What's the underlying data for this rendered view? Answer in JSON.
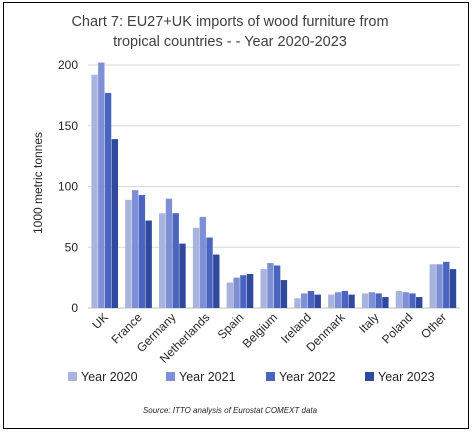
{
  "chart_data": {
    "type": "bar",
    "title_line1": "Chart 7: EU27+UK imports of wood furniture from",
    "title_line2": "tropical countries - - Year 2020-2023",
    "xlabel": "",
    "ylabel": "1000 metric tonnes",
    "ylim": [
      0,
      200
    ],
    "yticks": [
      "0",
      "50",
      "100",
      "150",
      "200"
    ],
    "grid": true,
    "legend_position": "bottom",
    "source": "Source: ITTO analysis of Eurostat COMEXT data",
    "categories": [
      "UK",
      "France",
      "Germany",
      "Netherlands",
      "Spain",
      "Belgium",
      "Ireland",
      "Denmark",
      "Italy",
      "Poland",
      "Other"
    ],
    "series": [
      {
        "name": "Year 2020",
        "color": "#a9b4de",
        "values": [
          192,
          89,
          78,
          66,
          21,
          32,
          8,
          11,
          12,
          14,
          36
        ]
      },
      {
        "name": "Year 2021",
        "color": "#7e8fd6",
        "values": [
          202,
          97,
          90,
          75,
          25,
          37,
          12,
          13,
          13,
          13,
          36
        ]
      },
      {
        "name": "Year 2022",
        "color": "#4a64bf",
        "values": [
          177,
          93,
          78,
          58,
          27,
          35,
          14,
          14,
          12,
          12,
          38
        ]
      },
      {
        "name": "Year 2023",
        "color": "#2f4a9c",
        "values": [
          139,
          72,
          53,
          44,
          28,
          23,
          11,
          11,
          9,
          9,
          32
        ]
      }
    ]
  }
}
